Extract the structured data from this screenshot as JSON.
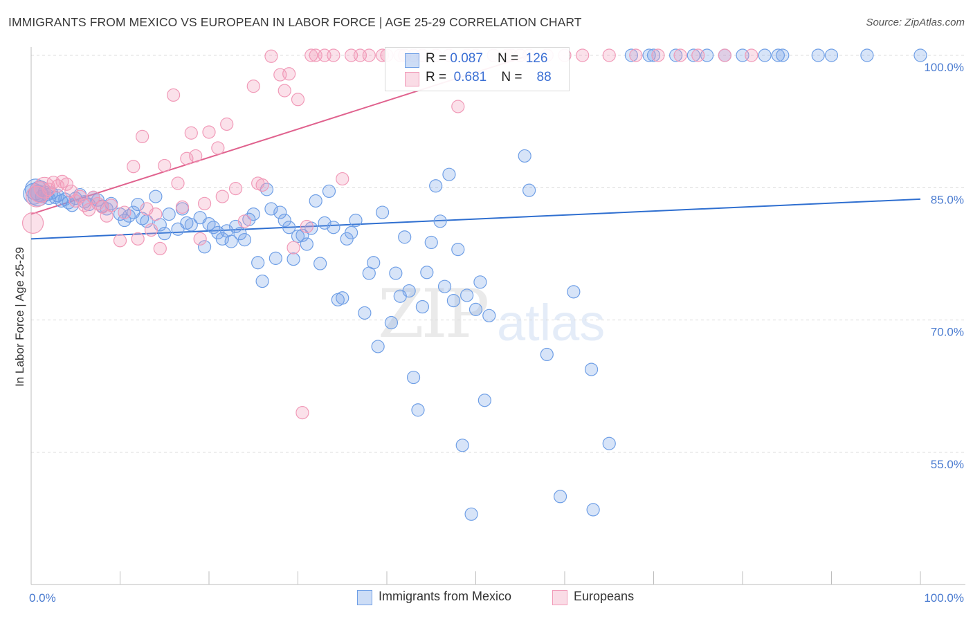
{
  "title": "IMMIGRANTS FROM MEXICO VS EUROPEAN IN LABOR FORCE | AGE 25-29 CORRELATION CHART",
  "source": "Source: ZipAtlas.com",
  "watermark": {
    "part1": "ZIP",
    "part2": "atlas"
  },
  "colors": {
    "blue": "#6f9fe6",
    "blue_line": "#2f6fd0",
    "pink": "#f19ab8",
    "pink_line": "#e0628e",
    "axis_text": "#4a7bd0"
  },
  "legend": {
    "rows": [
      {
        "r_label": "R = ",
        "r_value": "0.087",
        "n_label": "N = ",
        "n_value": "126"
      },
      {
        "r_label": "R = ",
        "r_value": "0.681",
        "n_label": "N = ",
        "n_value": "88"
      }
    ]
  },
  "bottom_legend": {
    "series1": "Immigrants from Mexico",
    "series2": "Europeans"
  },
  "chart_data": {
    "type": "scatter",
    "title": "IMMIGRANTS FROM MEXICO VS EUROPEAN IN LABOR FORCE | AGE 25-29 CORRELATION CHART",
    "xlabel": "",
    "ylabel": "In Labor Force | Age 25-29",
    "xlim": [
      0,
      100
    ],
    "ylim": [
      40,
      102
    ],
    "x_tick_labels": [
      "0.0%",
      "100.0%"
    ],
    "y_ticks": [
      55,
      70,
      85,
      100
    ],
    "y_tick_labels": [
      "55.0%",
      "70.0%",
      "85.0%",
      "100.0%"
    ],
    "series": [
      {
        "name": "Immigrants from Mexico",
        "color": "#6f9fe6",
        "trend": {
          "x": [
            0,
            100
          ],
          "y": [
            79.2,
            83.7
          ]
        },
        "points": [
          [
            0.3,
            84.3
          ],
          [
            0.5,
            84.8
          ],
          [
            0.8,
            84.1
          ],
          [
            1.0,
            84.6
          ],
          [
            1.2,
            84.0
          ],
          [
            1.5,
            84.5
          ],
          [
            1.8,
            84.2
          ],
          [
            2.0,
            83.8
          ],
          [
            2.3,
            84.4
          ],
          [
            2.7,
            83.9
          ],
          [
            3.0,
            84.1
          ],
          [
            3.4,
            83.5
          ],
          [
            3.8,
            83.7
          ],
          [
            4.2,
            83.3
          ],
          [
            4.6,
            83.0
          ],
          [
            5.0,
            83.8
          ],
          [
            5.5,
            84.2
          ],
          [
            6.0,
            83.4
          ],
          [
            6.5,
            83.1
          ],
          [
            7.0,
            83.9
          ],
          [
            7.5,
            83.6
          ],
          [
            8.0,
            82.9
          ],
          [
            8.5,
            82.6
          ],
          [
            9.0,
            83.2
          ],
          [
            10.0,
            82.0
          ],
          [
            10.5,
            81.3
          ],
          [
            11.0,
            81.8
          ],
          [
            11.5,
            82.2
          ],
          [
            12.0,
            83.1
          ],
          [
            12.5,
            81.5
          ],
          [
            13.0,
            81.2
          ],
          [
            14.0,
            84.0
          ],
          [
            14.5,
            80.8
          ],
          [
            15.0,
            79.8
          ],
          [
            15.5,
            82.0
          ],
          [
            16.5,
            80.3
          ],
          [
            17.0,
            82.6
          ],
          [
            17.5,
            81.0
          ],
          [
            18.0,
            80.8
          ],
          [
            19.0,
            81.6
          ],
          [
            19.5,
            78.3
          ],
          [
            20.0,
            80.9
          ],
          [
            20.5,
            80.5
          ],
          [
            21.0,
            79.9
          ],
          [
            21.5,
            79.2
          ],
          [
            22.0,
            80.1
          ],
          [
            22.5,
            78.9
          ],
          [
            23.0,
            80.6
          ],
          [
            23.5,
            79.8
          ],
          [
            24.0,
            79.1
          ],
          [
            24.5,
            81.4
          ],
          [
            25.0,
            82.0
          ],
          [
            25.5,
            76.5
          ],
          [
            26.0,
            74.4
          ],
          [
            26.5,
            84.8
          ],
          [
            27.0,
            82.6
          ],
          [
            27.5,
            77.0
          ],
          [
            28.0,
            82.2
          ],
          [
            28.5,
            81.3
          ],
          [
            29.0,
            80.5
          ],
          [
            29.5,
            76.9
          ],
          [
            30.0,
            79.5
          ],
          [
            30.5,
            79.6
          ],
          [
            31.0,
            78.6
          ],
          [
            31.5,
            80.4
          ],
          [
            32.0,
            83.5
          ],
          [
            32.5,
            76.4
          ],
          [
            33.0,
            81.0
          ],
          [
            33.5,
            84.6
          ],
          [
            34.0,
            80.5
          ],
          [
            34.5,
            72.3
          ],
          [
            35.0,
            72.5
          ],
          [
            35.5,
            79.2
          ],
          [
            36.0,
            79.9
          ],
          [
            36.5,
            81.3
          ],
          [
            37.5,
            70.8
          ],
          [
            38.0,
            75.3
          ],
          [
            38.5,
            76.5
          ],
          [
            39.0,
            67.0
          ],
          [
            39.5,
            82.2
          ],
          [
            40.5,
            69.7
          ],
          [
            41.0,
            75.3
          ],
          [
            41.5,
            72.7
          ],
          [
            42.0,
            79.4
          ],
          [
            42.5,
            73.3
          ],
          [
            43.0,
            63.5
          ],
          [
            43.5,
            59.8
          ],
          [
            44.0,
            71.5
          ],
          [
            44.5,
            75.4
          ],
          [
            45.0,
            78.8
          ],
          [
            45.5,
            85.2
          ],
          [
            46.0,
            81.2
          ],
          [
            46.5,
            73.8
          ],
          [
            47.0,
            86.5
          ],
          [
            47.5,
            72.2
          ],
          [
            48.0,
            78.0
          ],
          [
            48.5,
            55.8
          ],
          [
            49.0,
            72.8
          ],
          [
            49.5,
            48.0
          ],
          [
            50.0,
            71.2
          ],
          [
            50.5,
            74.3
          ],
          [
            51.0,
            60.9
          ],
          [
            51.5,
            70.5
          ],
          [
            55.5,
            88.6
          ],
          [
            56.0,
            84.7
          ],
          [
            58.0,
            66.1
          ],
          [
            59.5,
            50.0
          ],
          [
            61.0,
            73.2
          ],
          [
            63.0,
            64.4
          ],
          [
            63.2,
            48.5
          ],
          [
            65.0,
            56.0
          ],
          [
            67.5,
            100.0
          ],
          [
            69.5,
            100.0
          ],
          [
            70.0,
            100.0
          ],
          [
            72.5,
            100.0
          ],
          [
            74.5,
            100.0
          ],
          [
            76.0,
            100.0
          ],
          [
            78.0,
            100.0
          ],
          [
            80.0,
            100.0
          ],
          [
            82.5,
            100.0
          ],
          [
            84.0,
            100.0
          ],
          [
            88.5,
            100.0
          ],
          [
            90.0,
            100.0
          ],
          [
            94.0,
            100.0
          ],
          [
            100.0,
            100.0
          ],
          [
            84.5,
            100.0
          ]
        ]
      },
      {
        "name": "Europeans",
        "color": "#f19ab8",
        "trend": {
          "x": [
            0,
            56
          ],
          "y": [
            82.0,
            100.0
          ]
        },
        "points": [
          [
            0.2,
            81.0
          ],
          [
            0.6,
            84.0
          ],
          [
            1.0,
            84.5
          ],
          [
            1.5,
            85.0
          ],
          [
            2.0,
            84.8
          ],
          [
            2.5,
            85.6
          ],
          [
            3.0,
            85.2
          ],
          [
            3.5,
            85.7
          ],
          [
            4.0,
            85.4
          ],
          [
            4.5,
            84.6
          ],
          [
            5.0,
            83.5
          ],
          [
            5.5,
            84.0
          ],
          [
            6.0,
            83.0
          ],
          [
            6.5,
            82.5
          ],
          [
            7.0,
            83.9
          ],
          [
            7.5,
            83.2
          ],
          [
            8.0,
            82.8
          ],
          [
            8.5,
            81.8
          ],
          [
            9.0,
            83.0
          ],
          [
            10.0,
            79.0
          ],
          [
            10.5,
            82.2
          ],
          [
            11.5,
            87.4
          ],
          [
            12.0,
            79.2
          ],
          [
            12.5,
            90.8
          ],
          [
            13.0,
            82.6
          ],
          [
            13.5,
            80.2
          ],
          [
            14.0,
            82.0
          ],
          [
            14.5,
            78.1
          ],
          [
            15.0,
            87.5
          ],
          [
            16.0,
            95.5
          ],
          [
            16.5,
            85.5
          ],
          [
            17.0,
            82.8
          ],
          [
            17.5,
            88.3
          ],
          [
            18.0,
            91.2
          ],
          [
            18.5,
            88.6
          ],
          [
            19.0,
            79.2
          ],
          [
            19.5,
            83.2
          ],
          [
            20.0,
            91.3
          ],
          [
            21.0,
            89.5
          ],
          [
            21.5,
            84.0
          ],
          [
            22.0,
            92.2
          ],
          [
            23.0,
            84.9
          ],
          [
            24.0,
            81.2
          ],
          [
            25.0,
            96.5
          ],
          [
            25.5,
            85.5
          ],
          [
            26.0,
            85.3
          ],
          [
            27.0,
            99.9
          ],
          [
            28.0,
            97.8
          ],
          [
            28.5,
            96.0
          ],
          [
            29.0,
            97.9
          ],
          [
            29.5,
            78.2
          ],
          [
            30.0,
            95.0
          ],
          [
            30.5,
            59.5
          ],
          [
            31.0,
            80.6
          ],
          [
            31.5,
            100.0
          ],
          [
            32.0,
            100.0
          ],
          [
            33.0,
            100.0
          ],
          [
            34.0,
            100.0
          ],
          [
            35.0,
            86.0
          ],
          [
            36.0,
            100.0
          ],
          [
            37.0,
            100.0
          ],
          [
            38.0,
            100.0
          ],
          [
            39.5,
            100.0
          ],
          [
            40.0,
            100.0
          ],
          [
            41.5,
            100.0
          ],
          [
            42.0,
            100.0
          ],
          [
            43.0,
            100.0
          ],
          [
            44.0,
            100.0
          ],
          [
            45.5,
            100.0
          ],
          [
            47.0,
            100.0
          ],
          [
            48.0,
            94.2
          ],
          [
            49.0,
            100.0
          ],
          [
            50.0,
            100.0
          ],
          [
            52.0,
            100.0
          ],
          [
            53.5,
            100.0
          ],
          [
            54.0,
            100.0
          ],
          [
            55.0,
            100.0
          ],
          [
            56.0,
            100.0
          ],
          [
            58.0,
            100.0
          ],
          [
            60.0,
            100.0
          ],
          [
            62.0,
            100.0
          ],
          [
            65.0,
            100.0
          ],
          [
            68.0,
            100.0
          ],
          [
            70.5,
            100.0
          ],
          [
            73.0,
            100.0
          ],
          [
            75.0,
            100.0
          ],
          [
            78.0,
            100.0
          ],
          [
            81.0,
            100.0
          ]
        ]
      }
    ]
  }
}
